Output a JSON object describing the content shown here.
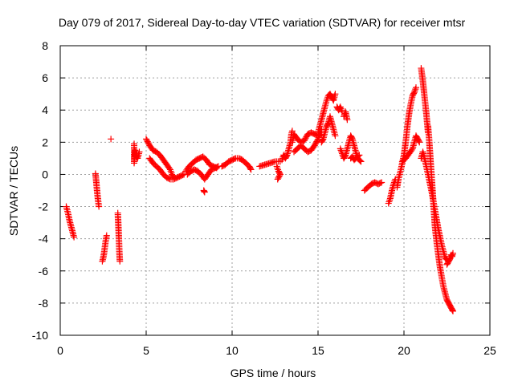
{
  "chart_data": {
    "type": "scatter",
    "title": "Day 079 of 2017, Sidereal Day-to-day VTEC variation (SDTVAR) for receiver mtsr",
    "xlabel": "GPS time / hours",
    "ylabel": "SDTVAR / TECUs",
    "xlim": [
      0,
      25
    ],
    "ylim": [
      -10,
      8
    ],
    "xticks": [
      "0",
      "5",
      "10",
      "15",
      "20",
      "25"
    ],
    "yticks": [
      "-10",
      "-8",
      "-6",
      "-4",
      "-2",
      "0",
      "2",
      "4",
      "6",
      "8"
    ],
    "grid": true,
    "marker": "+",
    "color": "#ff0000",
    "series": [
      {
        "name": "SDTVAR",
        "segments": [
          [
            [
              0.35,
              -2.0
            ],
            [
              0.45,
              -2.4
            ],
            [
              0.55,
              -2.9
            ],
            [
              0.65,
              -3.3
            ],
            [
              0.75,
              -3.7
            ],
            [
              0.8,
              -3.9
            ]
          ],
          [
            [
              2.05,
              0.05
            ],
            [
              2.1,
              -0.5
            ],
            [
              2.15,
              -1.1
            ],
            [
              2.2,
              -1.6
            ],
            [
              2.25,
              -2.0
            ]
          ],
          [
            [
              2.45,
              -5.4
            ],
            [
              2.5,
              -5.2
            ],
            [
              2.55,
              -4.9
            ],
            [
              2.6,
              -4.5
            ],
            [
              2.65,
              -4.1
            ],
            [
              2.7,
              -3.8
            ]
          ],
          [
            [
              2.95,
              2.2
            ]
          ],
          [
            [
              3.35,
              -2.4
            ],
            [
              3.38,
              -3.1
            ],
            [
              3.41,
              -3.9
            ],
            [
              3.44,
              -4.8
            ],
            [
              3.47,
              -5.4
            ]
          ],
          [
            [
              4.3,
              1.9
            ],
            [
              4.3,
              0.7
            ],
            [
              4.35,
              1.5
            ],
            [
              4.4,
              1.2
            ],
            [
              4.5,
              1.0
            ],
            [
              4.6,
              1.4
            ]
          ],
          [
            [
              5.0,
              2.2
            ],
            [
              5.2,
              1.8
            ],
            [
              5.4,
              1.5
            ],
            [
              5.6,
              1.4
            ],
            [
              5.8,
              1.2
            ],
            [
              6.0,
              0.9
            ],
            [
              6.2,
              0.6
            ],
            [
              6.4,
              0.3
            ],
            [
              6.5,
              0.0
            ],
            [
              6.6,
              -0.2
            ]
          ],
          [
            [
              5.2,
              1.0
            ],
            [
              5.4,
              0.7
            ],
            [
              5.6,
              0.5
            ],
            [
              5.8,
              0.3
            ],
            [
              6.0,
              0.0
            ],
            [
              6.2,
              -0.2
            ],
            [
              6.4,
              -0.3
            ],
            [
              6.6,
              -0.3
            ],
            [
              6.8,
              -0.2
            ],
            [
              7.0,
              -0.1
            ],
            [
              7.2,
              0.0
            ]
          ],
          [
            [
              7.3,
              0.2
            ],
            [
              7.5,
              0.5
            ],
            [
              7.7,
              0.7
            ],
            [
              7.9,
              0.9
            ],
            [
              8.1,
              1.0
            ],
            [
              8.3,
              1.1
            ],
            [
              8.5,
              0.9
            ],
            [
              8.7,
              0.6
            ],
            [
              8.9,
              0.5
            ],
            [
              9.1,
              0.4
            ]
          ],
          [
            [
              7.4,
              0.0
            ],
            [
              7.6,
              0.2
            ],
            [
              7.8,
              0.3
            ],
            [
              8.0,
              0.2
            ],
            [
              8.2,
              0.0
            ],
            [
              8.4,
              -0.3
            ],
            [
              8.6,
              0.0
            ],
            [
              8.8,
              0.3
            ],
            [
              9.0,
              0.4
            ],
            [
              9.2,
              0.5
            ]
          ],
          [
            [
              8.35,
              -1.0
            ],
            [
              8.4,
              -1.1
            ]
          ],
          [
            [
              9.4,
              0.5
            ],
            [
              9.6,
              0.6
            ],
            [
              9.8,
              0.8
            ],
            [
              10.0,
              0.9
            ],
            [
              10.2,
              1.0
            ],
            [
              10.4,
              1.0
            ],
            [
              10.6,
              0.9
            ],
            [
              10.8,
              0.7
            ],
            [
              11.0,
              0.5
            ],
            [
              11.1,
              0.3
            ]
          ],
          [
            [
              11.6,
              0.5
            ],
            [
              11.9,
              0.6
            ],
            [
              12.2,
              0.7
            ],
            [
              12.5,
              0.8
            ],
            [
              12.8,
              0.8
            ]
          ],
          [
            [
              12.6,
              0.5
            ],
            [
              12.7,
              0.2
            ],
            [
              12.8,
              0.0
            ],
            [
              12.65,
              -0.3
            ]
          ],
          [
            [
              12.9,
              0.9
            ],
            [
              13.0,
              1.2
            ],
            [
              13.1,
              1.0
            ],
            [
              13.2,
              1.2
            ],
            [
              13.3,
              1.6
            ],
            [
              13.4,
              2.0
            ],
            [
              13.45,
              2.5
            ],
            [
              13.5,
              2.7
            ]
          ],
          [
            [
              13.5,
              2.0
            ],
            [
              13.6,
              2.5
            ],
            [
              13.8,
              2.2
            ],
            [
              14.0,
              2.0
            ],
            [
              14.2,
              2.1
            ],
            [
              14.4,
              2.5
            ],
            [
              14.6,
              2.6
            ],
            [
              14.8,
              2.5
            ],
            [
              15.0,
              2.4
            ],
            [
              15.2,
              2.5
            ]
          ],
          [
            [
              13.6,
              1.4
            ],
            [
              13.8,
              1.6
            ],
            [
              14.0,
              1.8
            ],
            [
              14.2,
              1.6
            ],
            [
              14.4,
              1.4
            ],
            [
              14.6,
              1.5
            ],
            [
              14.8,
              1.8
            ],
            [
              15.0,
              2.2
            ],
            [
              15.2,
              2.8
            ]
          ],
          [
            [
              15.0,
              2.6
            ],
            [
              15.1,
              3.0
            ],
            [
              15.2,
              3.4
            ],
            [
              15.3,
              3.8
            ],
            [
              15.4,
              4.2
            ],
            [
              15.5,
              4.6
            ],
            [
              15.6,
              4.9
            ],
            [
              15.7,
              5.0
            ],
            [
              15.8,
              4.8
            ],
            [
              15.9,
              4.6
            ],
            [
              16.0,
              5.0
            ]
          ],
          [
            [
              15.2,
              2.0
            ],
            [
              15.3,
              2.2
            ],
            [
              15.4,
              2.6
            ],
            [
              15.5,
              3.0
            ],
            [
              15.6,
              3.2
            ],
            [
              15.7,
              3.6
            ],
            [
              15.8,
              3.2
            ],
            [
              15.9,
              2.8
            ],
            [
              16.0,
              2.4
            ]
          ],
          [
            [
              16.1,
              4.2
            ],
            [
              16.2,
              4.0
            ],
            [
              16.3,
              4.2
            ],
            [
              16.4,
              3.9
            ]
          ],
          [
            [
              16.5,
              3.6
            ],
            [
              16.6,
              3.9
            ],
            [
              16.7,
              3.4
            ]
          ],
          [
            [
              16.3,
              1.6
            ],
            [
              16.4,
              1.3
            ],
            [
              16.5,
              1.0
            ],
            [
              16.6,
              1.2
            ],
            [
              16.7,
              1.6
            ],
            [
              16.8,
              2.0
            ],
            [
              16.9,
              2.4
            ],
            [
              17.0,
              2.2
            ],
            [
              17.1,
              1.8
            ],
            [
              17.2,
              1.4
            ],
            [
              17.3,
              1.0
            ],
            [
              17.4,
              0.9
            ],
            [
              17.5,
              0.8
            ]
          ],
          [
            [
              16.9,
              1.0
            ],
            [
              17.0,
              1.1
            ],
            [
              17.1,
              0.9
            ],
            [
              17.2,
              1.0
            ],
            [
              17.4,
              1.2
            ]
          ],
          [
            [
              17.7,
              -1.0
            ],
            [
              17.9,
              -0.8
            ],
            [
              18.1,
              -0.6
            ],
            [
              18.3,
              -0.5
            ],
            [
              18.5,
              -0.6
            ],
            [
              18.7,
              -0.5
            ]
          ],
          [
            [
              19.1,
              -1.8
            ],
            [
              19.2,
              -1.5
            ],
            [
              19.3,
              -1.0
            ],
            [
              19.4,
              -0.6
            ],
            [
              19.5,
              -0.3
            ]
          ],
          [
            [
              19.6,
              -0.8
            ],
            [
              19.7,
              -0.2
            ],
            [
              19.8,
              0.2
            ],
            [
              19.9,
              0.7
            ],
            [
              20.0,
              1.2
            ],
            [
              20.1,
              2.0
            ],
            [
              20.2,
              3.0
            ],
            [
              20.3,
              3.8
            ],
            [
              20.4,
              4.4
            ],
            [
              20.5,
              4.9
            ],
            [
              20.6,
              5.1
            ],
            [
              20.7,
              5.4
            ]
          ],
          [
            [
              19.9,
              0.8
            ],
            [
              20.1,
              1.0
            ],
            [
              20.3,
              1.3
            ],
            [
              20.5,
              1.6
            ],
            [
              20.6,
              2.0
            ],
            [
              20.7,
              2.4
            ],
            [
              20.8,
              2.2
            ],
            [
              20.9,
              2.0
            ]
          ],
          [
            [
              21.0,
              6.6
            ],
            [
              21.05,
              6.2
            ],
            [
              21.1,
              5.8
            ],
            [
              21.15,
              5.3
            ],
            [
              21.2,
              4.8
            ],
            [
              21.25,
              4.3
            ],
            [
              21.3,
              3.8
            ],
            [
              21.35,
              3.2
            ],
            [
              21.4,
              2.6
            ]
          ],
          [
            [
              21.0,
              1.0
            ],
            [
              21.1,
              1.4
            ],
            [
              21.2,
              1.0
            ],
            [
              21.3,
              0.5
            ],
            [
              21.4,
              0.0
            ],
            [
              21.5,
              -0.5
            ],
            [
              21.6,
              -1.0
            ],
            [
              21.7,
              -1.6
            ],
            [
              21.8,
              -2.2
            ],
            [
              21.9,
              -2.8
            ],
            [
              22.0,
              -3.4
            ],
            [
              22.1,
              -3.9
            ],
            [
              22.2,
              -4.4
            ],
            [
              22.3,
              -4.8
            ],
            [
              22.4,
              -5.2
            ],
            [
              22.5,
              -5.3
            ]
          ],
          [
            [
              21.4,
              3.0
            ],
            [
              21.45,
              2.4
            ],
            [
              21.5,
              1.6
            ],
            [
              21.55,
              0.8
            ],
            [
              21.6,
              0.0
            ],
            [
              21.65,
              -0.8
            ],
            [
              21.7,
              -1.6
            ],
            [
              21.75,
              -2.4
            ],
            [
              21.8,
              -3.2
            ],
            [
              21.9,
              -4.2
            ],
            [
              22.0,
              -5.0
            ],
            [
              22.1,
              -5.8
            ],
            [
              22.2,
              -6.4
            ],
            [
              22.3,
              -7.0
            ],
            [
              22.4,
              -7.4
            ],
            [
              22.5,
              -7.8
            ],
            [
              22.6,
              -8.0
            ],
            [
              22.7,
              -8.2
            ],
            [
              22.8,
              -8.4
            ],
            [
              22.85,
              -8.5
            ]
          ],
          [
            [
              22.5,
              -5.6
            ],
            [
              22.6,
              -5.4
            ],
            [
              22.7,
              -5.2
            ],
            [
              22.75,
              -5.0
            ],
            [
              22.8,
              -5.1
            ],
            [
              22.85,
              -4.9
            ]
          ]
        ]
      }
    ]
  }
}
